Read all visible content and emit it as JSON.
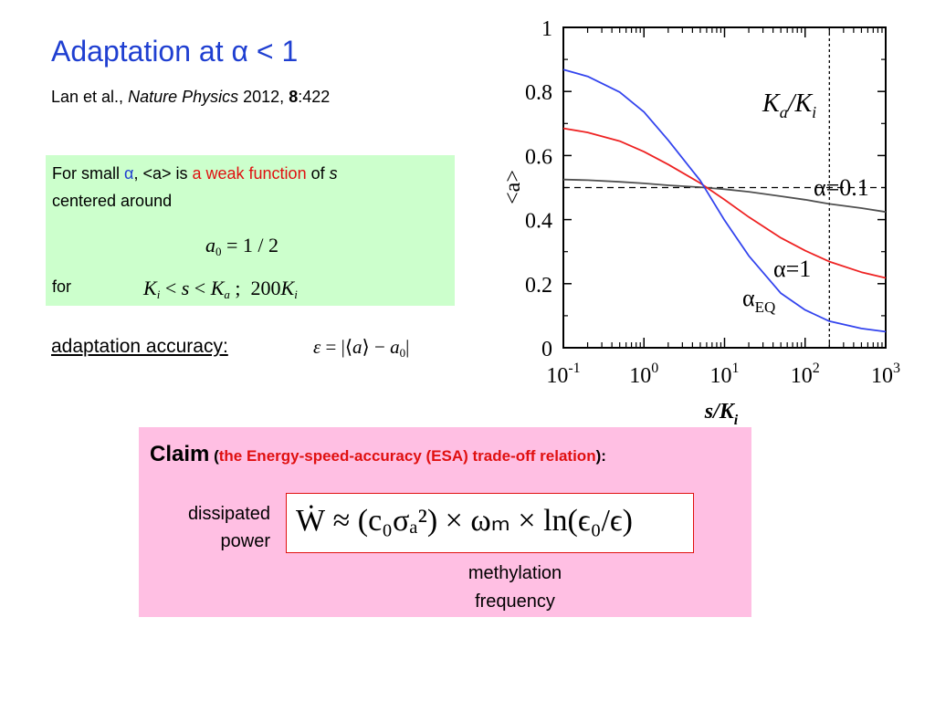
{
  "slide": {
    "title": "Adaptation at α < 1",
    "citation": {
      "authors": "Lan et al.,",
      "journal": "Nature Physics",
      "year": "2012,",
      "volume": "8",
      "pages": ":422"
    }
  },
  "green_box": {
    "text_prefix": "For small",
    "alpha": "α",
    "text_mid": ", <a> is",
    "highlight": "a weak function",
    "text_of": "of",
    "s_var": "s",
    "line2": "centered around",
    "eq_a0": "a",
    "eq_a0_sub": "0",
    "eq_a0_rhs": "= 1 / 2",
    "for_label": "for",
    "eq_Ki": "K",
    "eq_i": "i",
    "eq_lt1": " < ",
    "eq_s": "s",
    "eq_lt2": " < ",
    "eq_Ka": "K",
    "eq_a": "a",
    "eq_sep": " ;  200",
    "eq_Ki2": "K",
    "eq_i2": "i"
  },
  "accuracy": {
    "label": "adaptation accuracy:",
    "eps": "ε",
    "eq_mid": " = |⟨",
    "a_var": "a",
    "eq_minus": "⟩ − ",
    "a0": "a",
    "a0_sub": "0",
    "eq_end": "|"
  },
  "claim": {
    "word": "Claim",
    "open": " (",
    "sub": "the Energy-speed-accuracy (ESA) trade-off relation",
    "close": "):",
    "dissipated_1": "dissipated",
    "dissipated_2": "power",
    "formula": "Ẇ ≈ (c₀σₐ²) × ωₘ × ln(ϵ₀/ϵ)",
    "methylation_1": "methylation",
    "methylation_2": "frequency"
  },
  "chart_data": {
    "type": "line",
    "xlabel": "s/K_i",
    "ylabel": "<a>",
    "xscale": "log",
    "xlim": [
      0.1,
      1000
    ],
    "ylim": [
      0,
      1
    ],
    "x_ticks": [
      "10^-1",
      "10^0",
      "10^1",
      "10^2",
      "10^3"
    ],
    "y_ticks": [
      "0",
      "0.2",
      "0.4",
      "0.6",
      "0.8",
      "1"
    ],
    "reference_lines": [
      {
        "orientation": "horizontal",
        "y": 0.5,
        "style": "dashed"
      },
      {
        "orientation": "vertical",
        "x": 200,
        "style": "dotted"
      }
    ],
    "annotations": {
      "vline_label_main": "K",
      "vline_label_sub": "a",
      "vline_label_sep": "/",
      "vline_label_main2": "K",
      "vline_label_sub2": "i",
      "alpha01": "α=0.1",
      "alpha1": "α=1",
      "alphaEQ": "α",
      "alphaEQ_sub": "EQ"
    },
    "x": [
      0.1,
      0.2,
      0.5,
      1,
      2,
      5,
      10,
      20,
      50,
      100,
      200,
      500,
      1000
    ],
    "series": [
      {
        "name": "α=0.1",
        "color": "#505050",
        "values": [
          0.525,
          0.523,
          0.518,
          0.513,
          0.507,
          0.501,
          0.495,
          0.487,
          0.473,
          0.462,
          0.449,
          0.436,
          0.424
        ]
      },
      {
        "name": "α=1",
        "color": "#ee2222",
        "values": [
          0.685,
          0.672,
          0.645,
          0.612,
          0.572,
          0.514,
          0.462,
          0.408,
          0.343,
          0.303,
          0.269,
          0.236,
          0.218
        ]
      },
      {
        "name": "α_EQ",
        "color": "#3344ee",
        "values": [
          0.868,
          0.847,
          0.798,
          0.736,
          0.648,
          0.522,
          0.398,
          0.287,
          0.17,
          0.118,
          0.083,
          0.06,
          0.05
        ]
      }
    ]
  }
}
